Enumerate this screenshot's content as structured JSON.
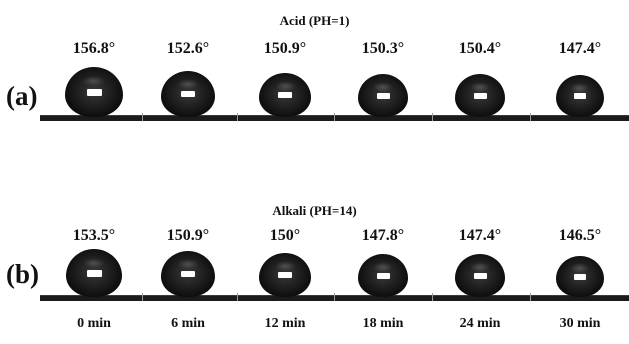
{
  "rows": [
    {
      "label": "(a)",
      "title": "Acid (PH=1)",
      "angles": [
        "156.8°",
        "152.6°",
        "150.9°",
        "150.3°",
        "150.4°",
        "147.4°"
      ]
    },
    {
      "label": "(b)",
      "title": "Alkali (PH=14)",
      "angles": [
        "153.5°",
        "150.9°",
        "150°",
        "147.8°",
        "147.4°",
        "146.5°"
      ]
    }
  ],
  "times": [
    "0 min",
    "6 min",
    "12 min",
    "18 min",
    "24 min",
    "30 min"
  ]
}
